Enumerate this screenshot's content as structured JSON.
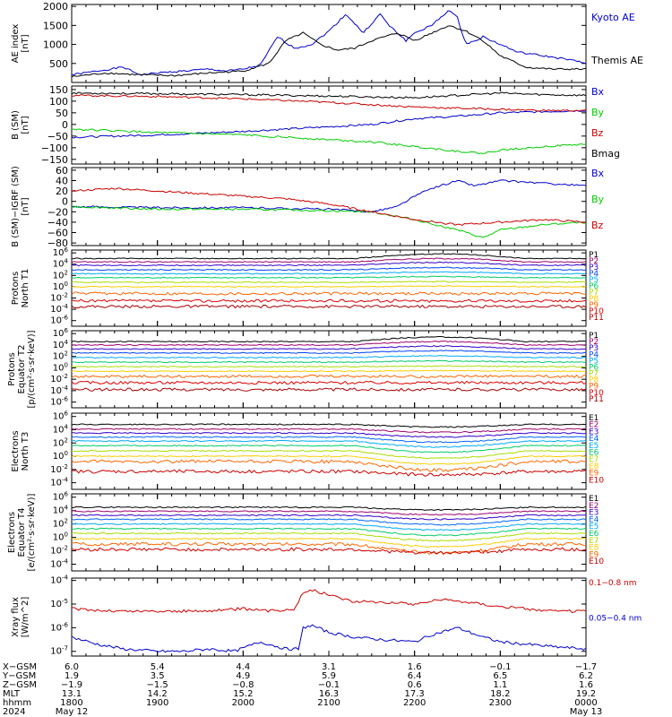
{
  "chart_data": [
    {
      "type": "line",
      "ylabel": [
        "AE index",
        "[nT]"
      ],
      "yticks": [
        "2000",
        "1500",
        "1000",
        "500"
      ],
      "ytick_values": [
        2000,
        1500,
        1000,
        500
      ],
      "ylim": [
        0,
        2050
      ],
      "series": [
        {
          "name": "Kyoto AE",
          "color": "#0000cc",
          "x": [
            18.0,
            18.3,
            18.6,
            18.8,
            19.0,
            19.3,
            19.6,
            19.8,
            20.0,
            20.2,
            20.4,
            20.6,
            20.8,
            21.0,
            21.2,
            21.4,
            21.6,
            21.7,
            21.9,
            22.0,
            22.2,
            22.4,
            22.5,
            22.6,
            22.8,
            23.0,
            23.2,
            23.5,
            23.8,
            24.0
          ],
          "values": [
            200,
            300,
            400,
            200,
            250,
            300,
            350,
            300,
            350,
            450,
            1200,
            900,
            1000,
            1350,
            1800,
            1300,
            1800,
            1500,
            1100,
            1300,
            1500,
            1900,
            1700,
            1000,
            1200,
            1000,
            800,
            700,
            600,
            500
          ]
        },
        {
          "name": "Themis AE",
          "color": "#000000",
          "x": [
            18.0,
            18.4,
            18.8,
            19.2,
            19.6,
            20.0,
            20.3,
            20.5,
            20.7,
            20.9,
            21.1,
            21.3,
            21.5,
            21.8,
            22.0,
            22.2,
            22.4,
            22.6,
            22.8,
            23.0,
            23.3,
            23.6,
            24.0
          ],
          "values": [
            150,
            250,
            200,
            180,
            250,
            300,
            500,
            1100,
            1300,
            1000,
            850,
            900,
            1100,
            1300,
            1100,
            1300,
            1500,
            1350,
            1100,
            700,
            400,
            350,
            350
          ]
        }
      ]
    },
    {
      "type": "line",
      "ylabel": [
        "B (SM)",
        "[nT]"
      ],
      "yticks": [
        "150",
        "100",
        "50",
        "0",
        "−50",
        "−100",
        "−150"
      ],
      "ytick_values": [
        150,
        100,
        50,
        0,
        -50,
        -100,
        -150
      ],
      "ylim": [
        -170,
        165
      ],
      "series": [
        {
          "name": "Bx",
          "color": "#0000cc",
          "x": [
            18.0,
            19.0,
            20.0,
            21.0,
            21.5,
            22.0,
            22.5,
            23.0,
            23.5,
            24.0
          ],
          "values": [
            -55,
            -45,
            -30,
            -10,
            0,
            25,
            35,
            50,
            55,
            60
          ]
        },
        {
          "name": "By",
          "color": "#00cc00",
          "x": [
            18.0,
            19.0,
            20.0,
            21.0,
            21.5,
            22.0,
            22.5,
            22.8,
            23.0,
            23.5,
            24.0
          ],
          "values": [
            -20,
            -35,
            -45,
            -65,
            -75,
            -95,
            -115,
            -125,
            -110,
            -95,
            -85
          ]
        },
        {
          "name": "Bz",
          "color": "#cc0000",
          "x": [
            18.0,
            19.0,
            20.0,
            21.0,
            21.5,
            22.0,
            22.5,
            23.0,
            23.5,
            24.0
          ],
          "values": [
            125,
            120,
            110,
            95,
            85,
            75,
            70,
            65,
            60,
            60
          ]
        },
        {
          "name": "Bmag",
          "color": "#000000",
          "x": [
            18.0,
            19.0,
            20.0,
            21.0,
            21.5,
            22.0,
            22.5,
            23.0,
            23.5,
            24.0
          ],
          "values": [
            135,
            132,
            128,
            122,
            118,
            115,
            125,
            135,
            128,
            125
          ]
        }
      ]
    },
    {
      "type": "line",
      "ylabel": [
        "B (SM)−IGRF (SM)",
        "[nT]"
      ],
      "yticks": [
        "60",
        "40",
        "20",
        "0",
        "−20",
        "−40",
        "−60",
        "−80"
      ],
      "ytick_values": [
        60,
        40,
        20,
        0,
        -20,
        -40,
        -60,
        -80
      ],
      "ylim": [
        -85,
        65
      ],
      "series": [
        {
          "name": "Bx",
          "color": "#0000cc",
          "x": [
            18.0,
            19.0,
            20.0,
            21.0,
            21.5,
            21.8,
            22.0,
            22.2,
            22.5,
            22.7,
            23.0,
            23.5,
            24.0
          ],
          "values": [
            -10,
            -12,
            -12,
            -15,
            -20,
            -10,
            10,
            25,
            40,
            30,
            40,
            35,
            30
          ]
        },
        {
          "name": "By",
          "color": "#00cc00",
          "x": [
            18.0,
            19.0,
            20.0,
            21.0,
            21.5,
            22.0,
            22.5,
            22.8,
            23.0,
            23.5,
            24.0
          ],
          "values": [
            -10,
            -15,
            -15,
            -18,
            -20,
            -35,
            -55,
            -70,
            -55,
            -45,
            -40
          ]
        },
        {
          "name": "Bz",
          "color": "#cc0000",
          "x": [
            18.0,
            18.5,
            19.0,
            19.5,
            20.0,
            20.5,
            21.0,
            21.5,
            22.0,
            22.5,
            23.0,
            23.5,
            24.0
          ],
          "values": [
            20,
            25,
            20,
            15,
            10,
            5,
            -5,
            -20,
            -35,
            -45,
            -40,
            -35,
            -40
          ]
        }
      ]
    },
    {
      "type": "line",
      "yscale": "log",
      "ylabel": [
        "Protons",
        "North T1"
      ],
      "ytick_exponents": [
        6,
        4,
        2,
        0,
        -2,
        -4,
        -6
      ],
      "ylim_exp": [
        -7,
        6.5
      ],
      "series": [
        {
          "name": "P1",
          "color": "#000000",
          "level": 5.0,
          "bump": 0.8
        },
        {
          "name": "P2",
          "color": "#a00070",
          "level": 4.4,
          "bump": 0.6
        },
        {
          "name": "P3",
          "color": "#3300cc",
          "level": 3.8,
          "bump": 0.5
        },
        {
          "name": "P4",
          "color": "#0044ff",
          "level": 3.0,
          "bump": 0.4
        },
        {
          "name": "P5",
          "color": "#00aaff",
          "level": 2.3,
          "bump": 0.3
        },
        {
          "name": "P6",
          "color": "#00cc66",
          "level": 1.6,
          "bump": 0.2
        },
        {
          "name": "P7",
          "color": "#aadd00",
          "level": 0.8,
          "bump": 0.1
        },
        {
          "name": "P8",
          "color": "#ffcc00",
          "level": 0.0,
          "bump": 0.1
        },
        {
          "name": "P9",
          "color": "#ff6600",
          "level": -1.2,
          "bump": 0.0
        },
        {
          "name": "P10",
          "color": "#dd0000",
          "level": -2.5,
          "bump": 0.0
        },
        {
          "name": "P11",
          "color": "#aa0000",
          "level": -3.5,
          "bump": 0.0
        }
      ]
    },
    {
      "type": "line",
      "yscale": "log",
      "ylabel": [
        "Protons",
        "Equator T2",
        "[p/(cm²·s·sr·keV)]"
      ],
      "ytick_exponents": [
        6,
        4,
        2,
        0,
        -2,
        -4,
        -6
      ],
      "ylim_exp": [
        -7,
        6.5
      ],
      "series": [
        {
          "name": "P1",
          "color": "#000000",
          "level": 4.6,
          "bump": 0.8
        },
        {
          "name": "P2",
          "color": "#a00070",
          "level": 4.0,
          "bump": 0.6
        },
        {
          "name": "P3",
          "color": "#3300cc",
          "level": 3.3,
          "bump": 0.5
        },
        {
          "name": "P4",
          "color": "#0044ff",
          "level": 2.6,
          "bump": 0.4
        },
        {
          "name": "P5",
          "color": "#00aaff",
          "level": 1.8,
          "bump": 0.3
        },
        {
          "name": "P6",
          "color": "#00cc66",
          "level": 1.0,
          "bump": 0.2
        },
        {
          "name": "P7",
          "color": "#aadd00",
          "level": 0.2,
          "bump": 0.1
        },
        {
          "name": "P8",
          "color": "#ffcc00",
          "level": -0.6,
          "bump": 0.1
        },
        {
          "name": "P9",
          "color": "#ff6600",
          "level": -1.5,
          "bump": 0.0
        },
        {
          "name": "P10",
          "color": "#dd0000",
          "level": -2.6,
          "bump": 0.0
        },
        {
          "name": "P11",
          "color": "#aa0000",
          "level": -3.8,
          "bump": 0.0
        }
      ]
    },
    {
      "type": "line",
      "yscale": "log",
      "ylabel": [
        "Electrons",
        "North T3"
      ],
      "ytick_exponents": [
        6,
        4,
        2,
        0,
        -2,
        -4
      ],
      "ylim_exp": [
        -5,
        6.5
      ],
      "series": [
        {
          "name": "E1",
          "color": "#000000",
          "level": 4.8,
          "bump": -0.4
        },
        {
          "name": "E2",
          "color": "#a00070",
          "level": 4.1,
          "bump": -0.5
        },
        {
          "name": "E3",
          "color": "#3300cc",
          "level": 3.5,
          "bump": -0.6
        },
        {
          "name": "E4",
          "color": "#0066ff",
          "level": 2.9,
          "bump": -0.8
        },
        {
          "name": "E5",
          "color": "#00aaff",
          "level": 2.3,
          "bump": -0.9
        },
        {
          "name": "E6",
          "color": "#00cc66",
          "level": 1.6,
          "bump": -1.0
        },
        {
          "name": "E7",
          "color": "#aadd00",
          "level": 0.8,
          "bump": -1.1
        },
        {
          "name": "E8",
          "color": "#ffcc00",
          "level": 0.0,
          "bump": -1.2
        },
        {
          "name": "E9",
          "color": "#ff6600",
          "level": -0.8,
          "bump": -1.3
        },
        {
          "name": "E10",
          "color": "#cc0000",
          "level": -2.3,
          "bump": -0.5
        }
      ]
    },
    {
      "type": "line",
      "yscale": "log",
      "ylabel": [
        "Electrons",
        "Equator T4",
        "[e/(cm²·s·sr·keV)]"
      ],
      "ytick_exponents": [
        6,
        4,
        2,
        0,
        -2,
        -4
      ],
      "ylim_exp": [
        -5,
        6.5
      ],
      "series": [
        {
          "name": "E1",
          "color": "#000000",
          "level": 4.5,
          "bump": -0.4
        },
        {
          "name": "E2",
          "color": "#a00070",
          "level": 3.9,
          "bump": -0.5
        },
        {
          "name": "E3",
          "color": "#3300cc",
          "level": 3.3,
          "bump": -0.6
        },
        {
          "name": "E4",
          "color": "#0066ff",
          "level": 2.7,
          "bump": -0.8
        },
        {
          "name": "E5",
          "color": "#00aaff",
          "level": 2.0,
          "bump": -0.9
        },
        {
          "name": "E6",
          "color": "#00cc66",
          "level": 1.3,
          "bump": -1.0
        },
        {
          "name": "E7",
          "color": "#aadd00",
          "level": 0.6,
          "bump": -1.1
        },
        {
          "name": "E8",
          "color": "#ffcc00",
          "level": -0.2,
          "bump": -1.2
        },
        {
          "name": "E9",
          "color": "#ff6600",
          "level": -1.0,
          "bump": -1.3
        },
        {
          "name": "E10",
          "color": "#cc0000",
          "level": -1.8,
          "bump": -0.5
        }
      ]
    },
    {
      "type": "line",
      "yscale": "log",
      "ylabel": [
        "Xray flux",
        "[W/m^2]"
      ],
      "ytick_exponents": [
        -4,
        -5,
        -6,
        -7
      ],
      "ylim_exp": [
        -7.2,
        -3.9
      ],
      "series": [
        {
          "name": "0.1−0.8 nm",
          "color": "#cc0000",
          "x": [
            18.0,
            18.5,
            19.0,
            19.5,
            20.0,
            20.3,
            20.6,
            20.7,
            20.8,
            21.0,
            21.3,
            21.6,
            22.0,
            22.3,
            22.6,
            23.0,
            23.3,
            23.6,
            24.0
          ],
          "values_exp": [
            -5.2,
            -5.3,
            -5.3,
            -5.3,
            -5.2,
            -5.3,
            -5.2,
            -4.5,
            -4.4,
            -4.6,
            -4.9,
            -4.9,
            -5.0,
            -4.8,
            -4.9,
            -5.1,
            -5.2,
            -5.3,
            -5.3
          ]
        },
        {
          "name": "0.05−0.4 nm",
          "color": "#0000cc",
          "x": [
            18.0,
            18.3,
            18.6,
            19.0,
            19.3,
            19.6,
            19.9,
            20.2,
            20.5,
            20.65,
            20.7,
            20.8,
            21.0,
            21.3,
            21.6,
            22.0,
            22.2,
            22.5,
            22.8,
            23.0,
            23.3,
            23.6,
            24.0
          ],
          "values_exp": [
            -6.4,
            -6.7,
            -6.9,
            -7.0,
            -7.0,
            -6.9,
            -7.0,
            -6.6,
            -6.9,
            -6.9,
            -6.0,
            -5.9,
            -6.2,
            -6.4,
            -6.5,
            -6.6,
            -6.3,
            -6.0,
            -6.4,
            -6.6,
            -6.7,
            -6.8,
            -6.9
          ]
        }
      ]
    }
  ],
  "xaxis": {
    "xlim": [
      18.0,
      24.0
    ],
    "tick_values": [
      18.0,
      19.0,
      20.0,
      21.0,
      22.0,
      23.0,
      24.0
    ],
    "minor_per_major": 6,
    "rows": [
      {
        "label": "X−GSM",
        "values": [
          "6.0",
          "5.4",
          "4.4",
          "3.1",
          "1.6",
          "−0.1",
          "−1.7"
        ]
      },
      {
        "label": "Y−GSM",
        "values": [
          "1.9",
          "3.5",
          "4.9",
          "5.9",
          "6.4",
          "6.5",
          "6.2"
        ]
      },
      {
        "label": "Z−GSM",
        "values": [
          "−1.9",
          "−1.5",
          "−0.8",
          "−0.1",
          "0.6",
          "1.1",
          "1.6"
        ]
      },
      {
        "label": "MLT",
        "values": [
          "13.1",
          "14.2",
          "15.2",
          "16.3",
          "17.3",
          "18.2",
          "19.2"
        ]
      },
      {
        "label": "hhmm",
        "values": [
          "1800",
          "1900",
          "2000",
          "2100",
          "2200",
          "2300",
          "0000"
        ]
      },
      {
        "label": "2024",
        "values": [
          "May 12",
          "",
          "",
          "",
          "",
          "",
          "May 13"
        ]
      }
    ]
  }
}
